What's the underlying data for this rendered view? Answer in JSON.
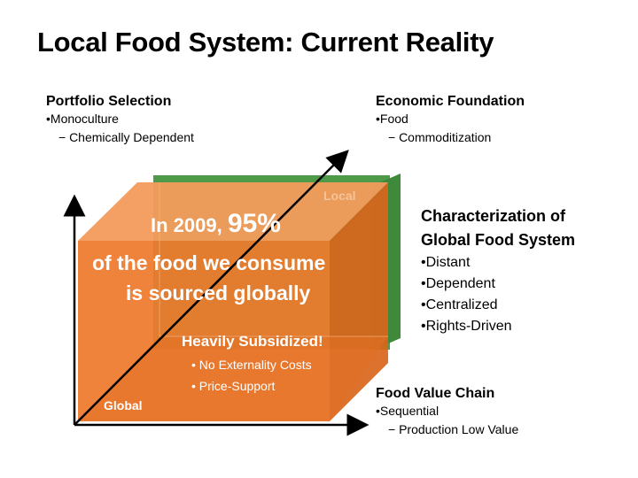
{
  "title": "Local Food System: Current Reality",
  "portfolio": {
    "heading": "Portfolio Selection",
    "item": "•Monoculture",
    "sub": "− Chemically Dependent"
  },
  "economic": {
    "heading": "Economic Foundation",
    "item": "•Food",
    "sub": "− Commoditization"
  },
  "value_chain": {
    "heading": "Food Value Chain",
    "item": "•Sequential",
    "sub": "− Production Low Value"
  },
  "characterization": {
    "heading_line1": "Characterization of",
    "heading_line2": "Global Food System",
    "items": [
      "•Distant",
      "•Dependent",
      "•Centralized",
      "•Rights-Driven"
    ]
  },
  "cube": {
    "stat_prefix": "In 2009, ",
    "stat_percent": "95%",
    "stat_line2": "of the food we consume",
    "stat_line3": "is sourced globally",
    "subsidy_heading": "Heavily Subsidized!",
    "subsidy_items": [
      "• No Externality Costs",
      "• Price-Support"
    ],
    "local_label": "Local",
    "global_label": "Global"
  },
  "colors": {
    "orange_front": "#ee7a2d",
    "orange_light": "#f5a368",
    "orange_dark": "#d9661c",
    "green_back": "#4e9a48"
  }
}
